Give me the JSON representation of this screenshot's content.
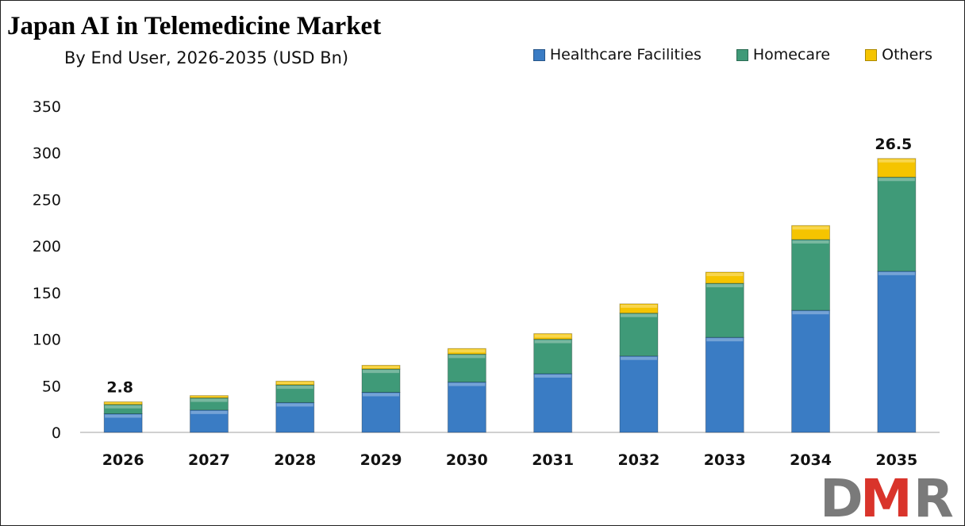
{
  "chart_data": {
    "type": "bar",
    "stacked": true,
    "title": "Japan AI in Telemedicine Market",
    "subtitle": "By End User, 2026-2035 (USD Bn)",
    "xlabel": "",
    "ylabel": "",
    "ylim": [
      0,
      350
    ],
    "yticks": [
      0,
      50,
      100,
      150,
      200,
      250,
      300,
      350
    ],
    "grid": false,
    "legend_position": "top-right",
    "categories": [
      "2026",
      "2027",
      "2028",
      "2029",
      "2030",
      "2031",
      "2032",
      "2033",
      "2034",
      "2035"
    ],
    "series": [
      {
        "name": "Healthcare Facilities",
        "color": "#3a7cc4",
        "values": [
          20,
          24,
          32,
          43,
          54,
          63,
          82,
          102,
          131,
          173
        ]
      },
      {
        "name": "Homecare",
        "color": "#3f9a78",
        "values": [
          10,
          13,
          19,
          25,
          30,
          37,
          46,
          58,
          76,
          101
        ]
      },
      {
        "name": "Others",
        "color": "#f5c400",
        "values": [
          2.8,
          2.5,
          4,
          4,
          6,
          6,
          10,
          12,
          15,
          20
        ]
      }
    ],
    "annotations": [
      {
        "category": "2026",
        "text": "2.8"
      },
      {
        "category": "2035",
        "text": "26.5"
      }
    ]
  },
  "logo": {
    "text": "DMR",
    "colors": [
      "#7a7a7a",
      "#d9342b"
    ]
  }
}
